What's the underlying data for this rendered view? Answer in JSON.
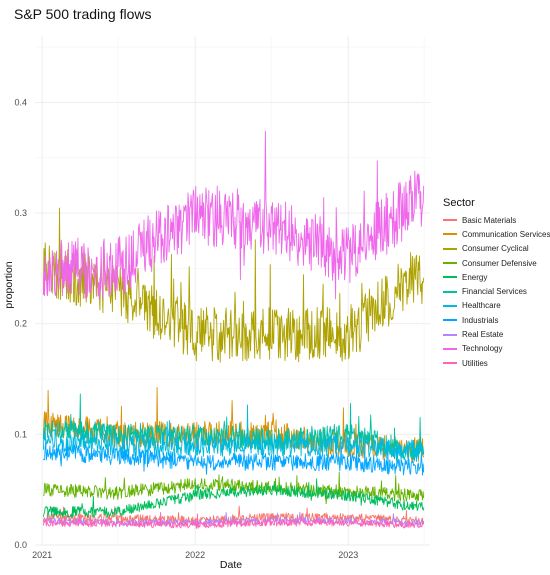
{
  "chart_data": {
    "type": "line",
    "title": "S&P 500 trading flows",
    "xlabel": "Date",
    "ylabel": "proportion",
    "legend_title": "Sector",
    "legend_position": "right",
    "grid": true,
    "x_range": [
      "2020-12-15",
      "2023-07-15"
    ],
    "ylim": [
      0,
      0.46
    ],
    "x_ticks": [
      "2021",
      "2022",
      "2023"
    ],
    "y_ticks": [
      "0.0",
      "0.1",
      "0.2",
      "0.3",
      "0.4"
    ],
    "series": [
      {
        "name": "Basic Materials",
        "color": "#F8766D",
        "values": [
          {
            "x": "2021-01",
            "y": 0.025
          },
          {
            "x": "2021-07",
            "y": 0.024
          },
          {
            "x": "2022-01",
            "y": 0.022
          },
          {
            "x": "2022-07",
            "y": 0.025
          },
          {
            "x": "2023-01",
            "y": 0.025
          },
          {
            "x": "2023-06",
            "y": 0.022
          }
        ]
      },
      {
        "name": "Communication Services",
        "color": "#DB8E00",
        "values": [
          {
            "x": "2021-01",
            "y": 0.11
          },
          {
            "x": "2021-07",
            "y": 0.1
          },
          {
            "x": "2022-01",
            "y": 0.1
          },
          {
            "x": "2022-07",
            "y": 0.1
          },
          {
            "x": "2023-01",
            "y": 0.09
          },
          {
            "x": "2023-06",
            "y": 0.085
          }
        ]
      },
      {
        "name": "Consumer Cyclical",
        "color": "#AEA200",
        "values": [
          {
            "x": "2021-01",
            "y": 0.25
          },
          {
            "x": "2021-07",
            "y": 0.23
          },
          {
            "x": "2022-01",
            "y": 0.19
          },
          {
            "x": "2022-07",
            "y": 0.19
          },
          {
            "x": "2023-01",
            "y": 0.19
          },
          {
            "x": "2023-06",
            "y": 0.24
          }
        ]
      },
      {
        "name": "Consumer Defensive",
        "color": "#64B200",
        "values": [
          {
            "x": "2021-01",
            "y": 0.05
          },
          {
            "x": "2021-07",
            "y": 0.047
          },
          {
            "x": "2022-01",
            "y": 0.055
          },
          {
            "x": "2022-07",
            "y": 0.052
          },
          {
            "x": "2023-01",
            "y": 0.048
          },
          {
            "x": "2023-06",
            "y": 0.045
          }
        ]
      },
      {
        "name": "Energy",
        "color": "#00BD5C",
        "values": [
          {
            "x": "2021-01",
            "y": 0.03
          },
          {
            "x": "2021-07",
            "y": 0.03
          },
          {
            "x": "2022-01",
            "y": 0.045
          },
          {
            "x": "2022-07",
            "y": 0.05
          },
          {
            "x": "2023-01",
            "y": 0.045
          },
          {
            "x": "2023-06",
            "y": 0.035
          }
        ]
      },
      {
        "name": "Financial Services",
        "color": "#00C1A7",
        "values": [
          {
            "x": "2021-01",
            "y": 0.105
          },
          {
            "x": "2021-07",
            "y": 0.1
          },
          {
            "x": "2022-01",
            "y": 0.1
          },
          {
            "x": "2022-07",
            "y": 0.095
          },
          {
            "x": "2023-01",
            "y": 0.1
          },
          {
            "x": "2023-06",
            "y": 0.085
          }
        ]
      },
      {
        "name": "Healthcare",
        "color": "#00BADE",
        "values": [
          {
            "x": "2021-01",
            "y": 0.095
          },
          {
            "x": "2021-07",
            "y": 0.09
          },
          {
            "x": "2022-01",
            "y": 0.09
          },
          {
            "x": "2022-07",
            "y": 0.09
          },
          {
            "x": "2023-01",
            "y": 0.09
          },
          {
            "x": "2023-06",
            "y": 0.085
          }
        ]
      },
      {
        "name": "Industrials",
        "color": "#00A6FF",
        "values": [
          {
            "x": "2021-01",
            "y": 0.085
          },
          {
            "x": "2021-07",
            "y": 0.08
          },
          {
            "x": "2022-01",
            "y": 0.075
          },
          {
            "x": "2022-07",
            "y": 0.075
          },
          {
            "x": "2023-01",
            "y": 0.075
          },
          {
            "x": "2023-06",
            "y": 0.07
          }
        ]
      },
      {
        "name": "Real Estate",
        "color": "#B385FF",
        "values": [
          {
            "x": "2021-01",
            "y": 0.022
          },
          {
            "x": "2021-07",
            "y": 0.02
          },
          {
            "x": "2022-01",
            "y": 0.02
          },
          {
            "x": "2022-07",
            "y": 0.022
          },
          {
            "x": "2023-01",
            "y": 0.022
          },
          {
            "x": "2023-06",
            "y": 0.02
          }
        ]
      },
      {
        "name": "Technology",
        "color": "#EF67EB",
        "values": [
          {
            "x": "2021-01",
            "y": 0.25
          },
          {
            "x": "2021-07",
            "y": 0.25
          },
          {
            "x": "2022-01",
            "y": 0.3
          },
          {
            "x": "2022-07",
            "y": 0.29
          },
          {
            "x": "2023-01",
            "y": 0.26
          },
          {
            "x": "2023-06",
            "y": 0.31
          }
        ]
      },
      {
        "name": "Utilities",
        "color": "#FF63B6",
        "values": [
          {
            "x": "2021-01",
            "y": 0.02
          },
          {
            "x": "2021-07",
            "y": 0.019
          },
          {
            "x": "2022-01",
            "y": 0.018
          },
          {
            "x": "2022-07",
            "y": 0.02
          },
          {
            "x": "2023-01",
            "y": 0.02
          },
          {
            "x": "2023-06",
            "y": 0.018
          }
        ]
      }
    ]
  }
}
